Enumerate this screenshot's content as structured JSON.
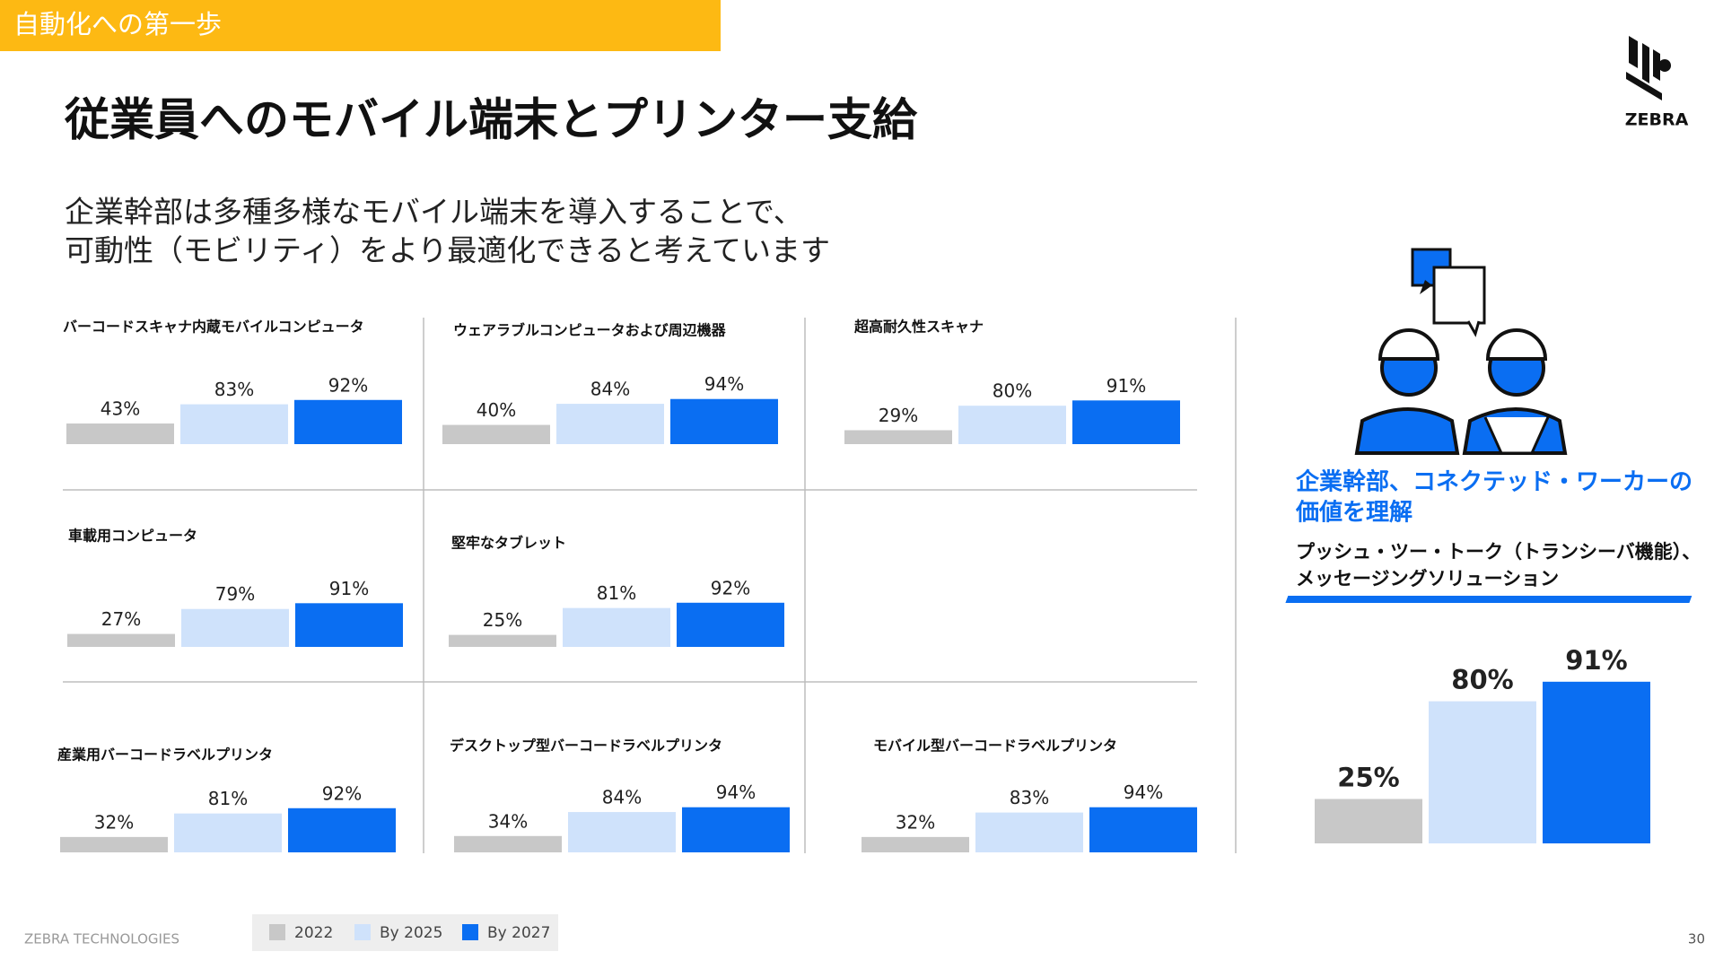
{
  "header": {
    "tag": "自動化への第一歩",
    "title": "従業員へのモバイル端末とプリンター支給",
    "subtitle": [
      "企業幹部は多種多様なモバイル端末を導入することで、",
      "可動性（モビリティ）をより最適化できると考えています"
    ],
    "logo": "ZEBRA"
  },
  "legend": [
    {
      "name": "2022",
      "color": "#c8c8c8"
    },
    {
      "name": "By 2025",
      "color": "#cfe2fb"
    },
    {
      "name": "By 2027",
      "color": "#0a6ef2"
    }
  ],
  "chart_data": [
    {
      "type": "bar",
      "title": "バーコードスキャナ内蔵モバイルコンピュータ",
      "values": [
        43,
        83,
        92
      ],
      "value_labels": [
        "43%",
        "83%",
        "92%"
      ]
    },
    {
      "type": "bar",
      "title": "ウェアラブルコンピュータおよび周辺機器",
      "values": [
        40,
        84,
        94
      ],
      "value_labels": [
        "40%",
        "84%",
        "94%"
      ]
    },
    {
      "type": "bar",
      "title": "超高耐久性スキャナ",
      "values": [
        29,
        80,
        91
      ],
      "value_labels": [
        "29%",
        "80%",
        "91%"
      ]
    },
    {
      "type": "bar",
      "title": "車載用コンピュータ",
      "values": [
        27,
        79,
        91
      ],
      "value_labels": [
        "27%",
        "79%",
        "91%"
      ]
    },
    {
      "type": "bar",
      "title": "堅牢なタブレット",
      "values": [
        25,
        81,
        92
      ],
      "value_labels": [
        "25%",
        "81%",
        "92%"
      ]
    },
    {
      "type": "bar",
      "title": "産業用バーコードラベルプリンタ",
      "values": [
        32,
        81,
        92
      ],
      "value_labels": [
        "32%",
        "81%",
        "92%"
      ]
    },
    {
      "type": "bar",
      "title": "デスクトップ型バーコードラベルプリンタ",
      "values": [
        34,
        84,
        94
      ],
      "value_labels": [
        "34%",
        "84%",
        "94%"
      ]
    },
    {
      "type": "bar",
      "title": "モバイル型バーコードラベルプリンタ",
      "values": [
        32,
        83,
        94
      ],
      "value_labels": [
        "32%",
        "83%",
        "94%"
      ]
    },
    {
      "type": "bar",
      "title": [
        "企業幹部、コネクテッド・ワーカーの",
        "価値を理解"
      ],
      "subtitle": [
        "プッシュ・ツー・トーク（トランシーバ機能）、",
        "メッセージングソリューション"
      ],
      "values": [
        25,
        80,
        91
      ],
      "value_labels": [
        "25%",
        "80%",
        "91%"
      ]
    }
  ],
  "footer": {
    "company": "ZEBRA TECHNOLOGIES",
    "page": "30"
  }
}
